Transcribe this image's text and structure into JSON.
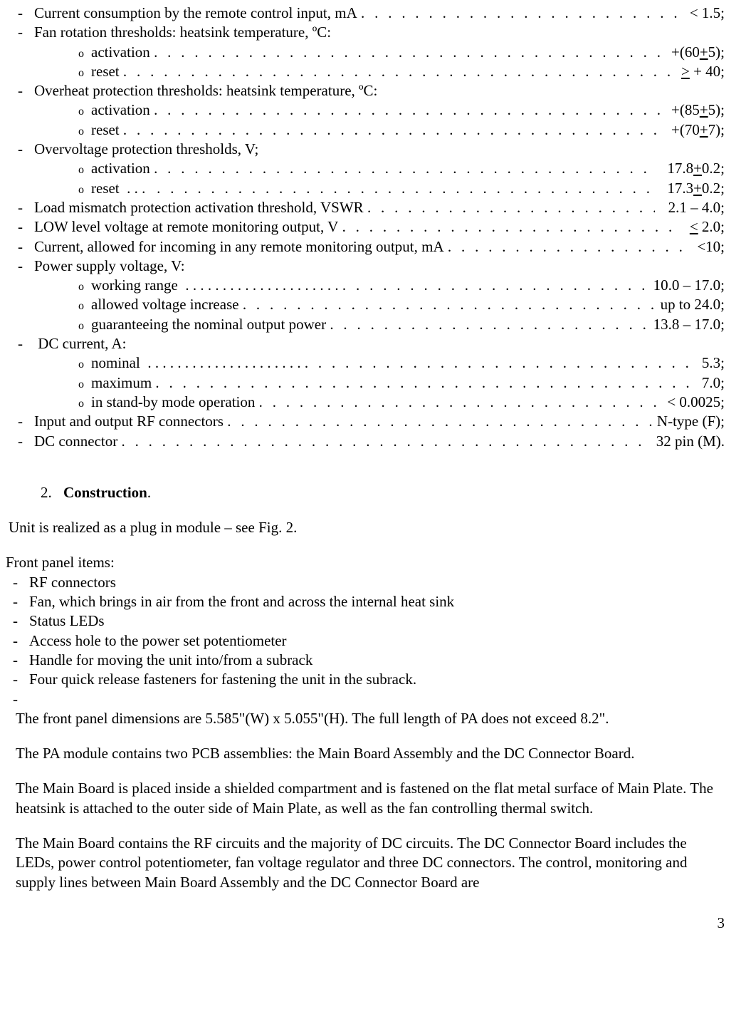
{
  "specs": [
    {
      "type": "main",
      "label": "Current consumption by the remote control input, mA",
      "value": "< 1.5;",
      "leader": ". . . . . . . . . . . . . . . . . . . . . . . . . . . . . . . . . . . . . . . . . . . ."
    },
    {
      "type": "main",
      "label": "Fan rotation thresholds: heatsink temperature, ºC:",
      "value": "",
      "leader": ""
    },
    {
      "type": "sub",
      "label": "activation",
      "value": "+(60<u>+</u>5);",
      "leader": ". . . . . . . . . . . . . . . . . . . . . . . . . . . . . . . . . . . . . . . . . . . . . . . . . . . . . . . . . . . . . . . . . . . . . . . . . . . . . . . . . . . . . . . . ."
    },
    {
      "type": "sub",
      "label": "reset",
      "value": "<u>></u> + 40;",
      "leader": ". . . . . . . . . . . . . . . . . . . . . . . . . . . . . . . . . . . . . . . . . . . . . . . . . . . . . . . . . . . . . .&nbsp;&nbsp;"
    },
    {
      "type": "main",
      "label": "Overheat protection thresholds: heatsink temperature, ºC:",
      "value": "",
      "leader": ""
    },
    {
      "type": "sub",
      "label": "activation",
      "value": "+(85<u>+</u>5);",
      "leader": ". . . . . . . . . . . . . . . . . . . . . . . . . . . . . . . . . . . . . . . . . . . . . . . . . . . . . . . . . . . . . . . . . . . . . . . . . . . . . . . . . . . . . . ."
    },
    {
      "type": "sub",
      "label": "reset",
      "value": "+(70<u>+</u>7);",
      "leader": ". . . . . . . . . . . . . . . . . . . . . . . . . . . . . . . . . . . . . . . . . . . . . . . . . . . . . . . . . . . . . . . . . . . . . . . . . . . . . . . . . . . . . . . . . . . . . . . ."
    },
    {
      "type": "main",
      "label": "Overvoltage protection thresholds, V;",
      "value": "",
      "leader": ""
    },
    {
      "type": "sub",
      "label": "activation ",
      "value": "&nbsp;&nbsp;17.8<u>+</u>0.2;",
      "leader": ". . . . . . . . . . . . . . . . . . . . . . . . . . . . . . . . . . . . . . . . . . . . . . . . . . . . . . . . . . . . . . . . . . . . . . . . . . . . . . . . . . . ."
    },
    {
      "type": "sub",
      "label": "reset &nbsp;. . . &nbsp;",
      "value": "&nbsp;&nbsp;17.3<u>+</u>0.2;",
      "leader": ". . . . . . . . . . . . . . . . . . . . . . . . . . . . . . . . . . . . . . . . . . . . . . . . . . . . . . . . . . . . . . . . . . . . . . . . . . . . . . . . . . . ."
    },
    {
      "type": "main",
      "label": "Load mismatch protection activation threshold, VSWR ",
      "value": "&nbsp;&nbsp;2.1 – 4.0;",
      "leader": ". . . . . . . . . . . . . . . . . . . . . . . . . . . . . . . . . . . ."
    },
    {
      "type": "main",
      "label": "LOW level voltage at remote monitoring output, V",
      "value": "&nbsp;<u><</u> 2.0;",
      "leader": ". . . . . . . . . . . . . . . . . . . . . . . . . . . . . . . . . . . . . . . . . . . . . . . ."
    },
    {
      "type": "main",
      "label": "Current, allowed for incoming in any remote monitoring output, mA",
      "value": "&nbsp;&nbsp;<10;",
      "leader": ". . . . . . . . . . . . . . . . . . . . . . . . . . ."
    },
    {
      "type": "main",
      "label": "Power supply voltage, V:",
      "value": "",
      "leader": ""
    },
    {
      "type": "sub",
      "label": "working range &nbsp;. . . . . . . . . . . . . . . . . . . . .",
      "value": "10.0 – 17.0;",
      "leader": ". . . . . . . . . . . . . . . . . . . . . . . . . . . . . . . . . . . . . . . . . . . . . . . . . . . . . . . . . . . . . . . . . . . . . . . . . . ."
    },
    {
      "type": "sub",
      "label": "allowed voltage increase",
      "value": "up to 24.0;",
      "leader": ". . . . . . . . . . . . . . . . . . . . . . . . . . . . . . . . . . . . . . . . . . . . . . . . . . . . . . . . . . . . . . . . . ."
    },
    {
      "type": "sub",
      "label": "guaranteeing the nominal output power ",
      "value": "13.8 – 17.0;",
      "leader": ". . . . . . . . . . . . . . . . . . . . . . . . . . . . . . . . . . . . . . . . . . . . . ."
    },
    {
      "type": "main",
      "label": "&nbsp;DC current, A:",
      "value": "",
      "leader": ""
    },
    {
      "type": "sub",
      "label": "nominal &nbsp;. . . . . . . . . . . . . . . . . . . . .",
      "value": "&nbsp;5.3;",
      "leader": ". . . . . . . . . . . . . . . . . . . . . . . . . . . . . . . . . . . . . . . . . . . . . . . . . . . . . . . . . . . . . . . . . . . . . . . . . . . . . . . . . . . . . . . . . . . . . . ."
    },
    {
      "type": "sub",
      "label": "maximum ",
      "value": "&nbsp;7.0;",
      "leader": ". . . . . . . . . . . . . . . . . . . . . . . . . . . . . . . . . . . . . . . . . . . . . . . . . . . . . . . . . . . . . . . . . . . . . . . . . . . . . . . . . . . . . . . . . . . ."
    },
    {
      "type": "sub",
      "label": "in stand-by mode operation ",
      "value": "&nbsp;< 0.0025;",
      "leader": ". . . . . . . . . . . . . . . . . . . . . . . . . . . . . . . . . . . . . . . . . . . . . . . . . . . . . . . . . . . . . . ."
    },
    {
      "type": "main",
      "label": "Input and output RF connectors ",
      "value": "N-type (F);",
      "leader": ". . . . . . . . . . . . . . . . . . . . . . . . . . . . . . . . . . . . . . . . . . . . . . . . . . . . . . . . . . . . . . . . . . ."
    },
    {
      "type": "main",
      "label": "DC connector ",
      "value": "32 pin (M).",
      "leader": ". . . . . . . . . . . . . . . . . . . . . . . . . . . . . . . . . . . . . . . . . . . . . . . . . . . . . . . . . . . . . . . . . . . . . . . . . . . . . . . . . . . . . . . . . ."
    }
  ],
  "section": {
    "num": "2.",
    "title": "Construction",
    "period": "."
  },
  "unit_para": "Unit is realized as a plug in module – see Fig. 2.",
  "front_title": "Front panel items:",
  "front_items": [
    "RF connectors",
    "Fan, which brings in air from the front and across the internal heat sink",
    "Status LEDs",
    "Access hole to the power set potentiometer",
    "Handle for moving the unit into/from a subrack",
    "Four quick release fasteners for fastening the unit in the subrack.",
    ""
  ],
  "para2": "The front panel dimensions are 5.585\"(W) x 5.055\"(H). The full length of PA does not exceed 8.2\".",
  "para3": "The PA module contains two PCB assemblies:  the Main Board Assembly and the DC Connector Board.",
  "para4": "The Main Board is placed inside a shielded compartment and is fastened on the flat metal surface of Main Plate. The heatsink is attached to the outer side of Main Plate, as well as the fan controlling thermal switch.",
  "para5": "The Main Board contains the RF circuits and the majority of DC circuits. The DC Connector Board includes the LEDs, power control potentiometer, fan voltage regulator and three DC connectors. The control, monitoring and supply lines between Main Board Assembly and the DC Connector Board are",
  "pagenum": "3"
}
